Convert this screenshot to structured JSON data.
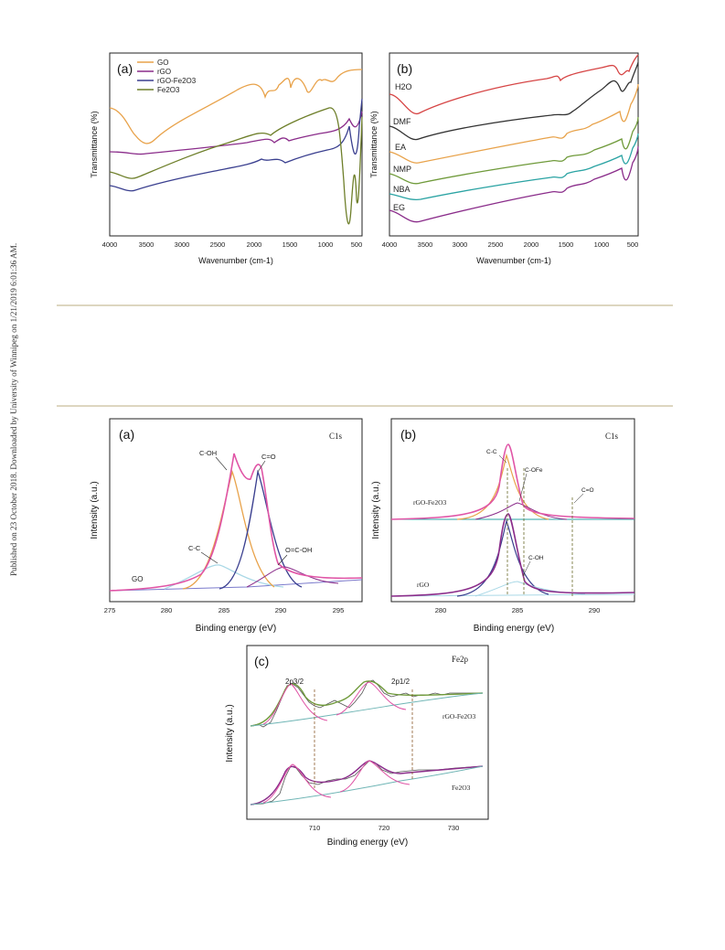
{
  "sidebar_text": "Published on 23 October 2018. Downloaded by University of Winnipeg on 1/21/2019 6:01:36 AM.",
  "colors": {
    "orange": "#e8a24a",
    "purple": "#8a2c8a",
    "navy": "#3a3f8f",
    "olive": "#6e7f2a",
    "red": "#d64545",
    "black": "#333333",
    "teal": "#2aa3a3",
    "green": "#6f9a3a",
    "pink": "#e055a6",
    "gray": "#9a9a9a",
    "lightblue": "#a9d8e6"
  },
  "ftir_a": {
    "panel_label": "(a)",
    "legend": [
      "GO",
      "rGO",
      "rGO-Fe2O3",
      "Fe2O3"
    ],
    "ylabel": "Transmittance (%)",
    "xlabel": "Wavenumber (cm-1)",
    "x_ticks": [
      "4000",
      "3500",
      "3000",
      "2500",
      "2000",
      "1500",
      "1000",
      "500"
    ]
  },
  "ftir_b": {
    "panel_label": "(b)",
    "series_labels": [
      "H2O",
      "DMF",
      "EA",
      "NMP",
      "NBA",
      "EG"
    ],
    "ylabel": "Transmittance (%)",
    "xlabel": "Wavenumber (cm-1)",
    "x_ticks": [
      "4000",
      "3500",
      "3000",
      "2500",
      "2000",
      "1500",
      "1000",
      "500"
    ]
  },
  "xps_a": {
    "panel_label": "(a)",
    "region": "C1s",
    "sample": "GO",
    "peaks": [
      "C-OH",
      "C=O",
      "C-C",
      "O=C-OH"
    ],
    "ylabel": "Intensity (a.u.)",
    "xlabel": "Binding energy (eV)",
    "x_ticks": [
      "275",
      "280",
      "285",
      "290",
      "295"
    ]
  },
  "xps_b": {
    "panel_label": "(b)",
    "region": "C1s",
    "samples": [
      "rGO-Fe2O3",
      "rGO"
    ],
    "peaks": [
      "C-C",
      "C-OFe",
      "C=O",
      "C-OH"
    ],
    "ylabel": "Intensity (a.u.)",
    "xlabel": "Binding energy (eV)",
    "x_ticks": [
      "280",
      "285",
      "290"
    ]
  },
  "xps_c": {
    "panel_label": "(c)",
    "region": "Fe2p",
    "samples": [
      "rGO-Fe2O3",
      "Fe2O3"
    ],
    "peaks": [
      "2p3/2",
      "2p1/2"
    ],
    "ylabel": "Intensity (a.u.)",
    "xlabel": "Binding energy (eV)",
    "x_ticks": [
      "710",
      "720",
      "730"
    ]
  }
}
